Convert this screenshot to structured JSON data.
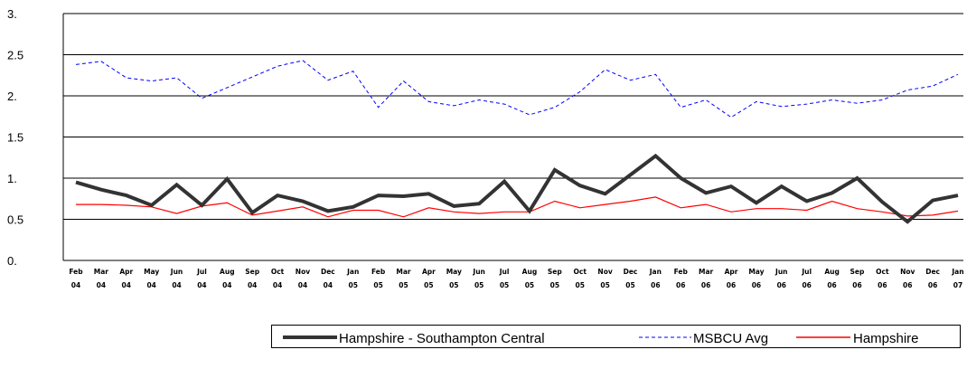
{
  "chart_data": {
    "type": "line",
    "title": "",
    "xlabel": "",
    "ylabel": "",
    "ylim": [
      0,
      3
    ],
    "y_ticks": [
      "0.",
      "0.5",
      "1.",
      "1.5",
      "2.",
      "2.5",
      "3."
    ],
    "grid": "horizontal",
    "legend_position": "bottom-right",
    "categories": [
      "Feb 04",
      "Mar 04",
      "Apr 04",
      "May 04",
      "Jun 04",
      "Jul 04",
      "Aug 04",
      "Sep 04",
      "Oct 04",
      "Nov 04",
      "Dec 04",
      "Jan 05",
      "Feb 05",
      "Mar 05",
      "Apr 05",
      "May 05",
      "Jun 05",
      "Jul 05",
      "Aug 05",
      "Sep 05",
      "Oct 05",
      "Nov 05",
      "Dec 05",
      "Jan 06",
      "Feb 06",
      "Mar 06",
      "Apr 06",
      "May 06",
      "Jun 06",
      "Jul 06",
      "Aug 06",
      "Sep 06",
      "Oct 06",
      "Nov 06",
      "Dec 06",
      "Jan 07"
    ],
    "tick_labels": [
      [
        "Feb",
        "04"
      ],
      [
        "Mar",
        "04"
      ],
      [
        "Apr",
        "04"
      ],
      [
        "May",
        "04"
      ],
      [
        "Jun",
        "04"
      ],
      [
        "Jul",
        "04"
      ],
      [
        "Aug",
        "04"
      ],
      [
        "Sep",
        "04"
      ],
      [
        "Oct",
        "04"
      ],
      [
        "Nov",
        "04"
      ],
      [
        "Dec",
        "04"
      ],
      [
        "Jan",
        "05"
      ],
      [
        "Feb",
        "05"
      ],
      [
        "Mar",
        "05"
      ],
      [
        "Apr",
        "05"
      ],
      [
        "May",
        "05"
      ],
      [
        "Jun",
        "05"
      ],
      [
        "Jul",
        "05"
      ],
      [
        "Aug",
        "05"
      ],
      [
        "Sep",
        "05"
      ],
      [
        "Oct",
        "05"
      ],
      [
        "Nov",
        "05"
      ],
      [
        "Dec",
        "05"
      ],
      [
        "Jan",
        "06"
      ],
      [
        "Feb",
        "06"
      ],
      [
        "Mar",
        "06"
      ],
      [
        "Apr",
        "06"
      ],
      [
        "May",
        "06"
      ],
      [
        "Jun",
        "06"
      ],
      [
        "Jul",
        "06"
      ],
      [
        "Aug",
        "06"
      ],
      [
        "Sep",
        "06"
      ],
      [
        "Oct",
        "06"
      ],
      [
        "Nov",
        "06"
      ],
      [
        "Dec",
        "06"
      ],
      [
        "Jan",
        "07"
      ]
    ],
    "series": [
      {
        "name": "Hampshire - Southampton Central",
        "color": "#333333",
        "style": "solid-thick",
        "values": [
          0.95,
          0.86,
          0.79,
          0.67,
          0.92,
          0.67,
          0.99,
          0.58,
          0.79,
          0.72,
          0.6,
          0.65,
          0.79,
          0.78,
          0.81,
          0.66,
          0.69,
          0.96,
          0.6,
          1.1,
          0.91,
          0.81,
          1.04,
          1.27,
          1.0,
          0.82,
          0.9,
          0.7,
          0.9,
          0.72,
          0.82,
          1.0,
          0.71,
          0.47,
          0.73,
          0.79
        ]
      },
      {
        "name": "MSBCU Avg",
        "color": "#0000ff",
        "style": "dashed",
        "values": [
          2.38,
          2.42,
          2.22,
          2.18,
          2.22,
          1.97,
          2.1,
          2.23,
          2.36,
          2.43,
          2.19,
          2.3,
          1.86,
          2.18,
          1.93,
          1.88,
          1.95,
          1.9,
          1.77,
          1.86,
          2.05,
          2.32,
          2.19,
          2.26,
          1.86,
          1.95,
          1.74,
          1.93,
          1.87,
          1.9,
          1.95,
          1.91,
          1.95,
          2.07,
          2.12,
          2.26
        ]
      },
      {
        "name": "Hampshire",
        "color": "#ff0000",
        "style": "solid-thin",
        "values": [
          0.68,
          0.68,
          0.67,
          0.65,
          0.57,
          0.66,
          0.7,
          0.55,
          0.6,
          0.65,
          0.53,
          0.61,
          0.61,
          0.53,
          0.64,
          0.59,
          0.57,
          0.59,
          0.59,
          0.72,
          0.64,
          0.68,
          0.72,
          0.77,
          0.64,
          0.68,
          0.59,
          0.63,
          0.63,
          0.61,
          0.72,
          0.63,
          0.59,
          0.54,
          0.55,
          0.6
        ]
      }
    ]
  }
}
